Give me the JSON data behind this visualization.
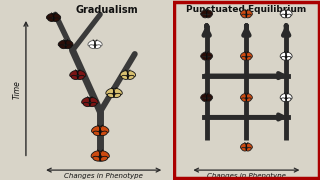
{
  "bg_color": "#d8d4c8",
  "left_bg": "#d8d4c8",
  "right_bg": "#f0eeea",
  "right_border_color": "#aa0000",
  "title_left": "Gradualism",
  "title_right": "Punctuated Equilibrium",
  "ylabel": "Time",
  "xlabel_left": "Changes in Phenotype",
  "xlabel_right": "Changes in Phenotype",
  "butterfly_colors": {
    "dark": "#2a0e08",
    "red": "#7a1515",
    "orange": "#cc4a10",
    "cream": "#d8c070",
    "white": "#ffffff"
  },
  "overall_bg": "#d8d4c8",
  "tree_color": "#3a3a3a",
  "arrow_color": "#2a2a2a"
}
